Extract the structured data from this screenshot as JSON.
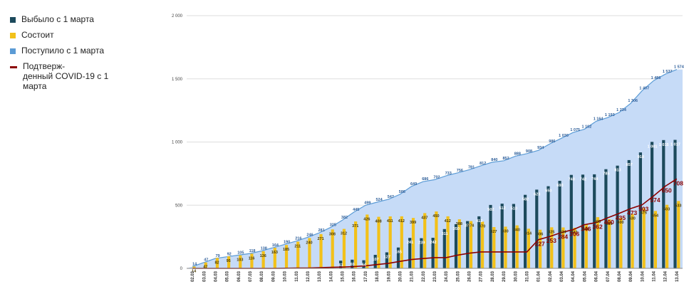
{
  "legend": {
    "items": [
      {
        "label": "Выбыло с 1 марта",
        "color": "#1c4a5c"
      },
      {
        "label": "Состоит",
        "color": "#f2c11a"
      },
      {
        "label": "Поступило с 1 марта",
        "color": "#5b9bd5"
      },
      {
        "label": "Подтверж-\nденный COVID-19 с 1\nмарта",
        "color": "#8b0000"
      }
    ]
  },
  "colors": {
    "area_fill": "#c6dbf7",
    "area_line": "#5b9bd5",
    "bar_outflow": "#1c4a5c",
    "bar_current": "#f2c11a",
    "covid_line": "#8b0000",
    "grid": "#dddddd"
  },
  "chart_data": {
    "type": "bar",
    "categories": [
      "02.03",
      "03.03",
      "04.03",
      "05.03",
      "06.03",
      "07.03",
      "08.03",
      "09.03",
      "10.03",
      "11.03",
      "12.03",
      "13.03",
      "14.03",
      "15.03",
      "16.03",
      "17.03",
      "18.03",
      "19.03",
      "20.03",
      "21.03",
      "22.03",
      "23.03",
      "24.03",
      "25.03",
      "26.03",
      "27.03",
      "28.03",
      "29.03",
      "30.03",
      "31.03",
      "01.04",
      "02.04",
      "03.04",
      "04.04",
      "05.04",
      "06.04",
      "07.04",
      "08.04",
      "09.04",
      "10.04",
      "11.04",
      "12.04",
      "13.04"
    ],
    "ylim": [
      0,
      2000
    ],
    "yticks": [
      0,
      500,
      1000,
      1500,
      2000
    ],
    "ytick_labels": [
      "0",
      "500",
      "1 000",
      "1 500",
      "2 000"
    ],
    "grid": true,
    "legend_position": "left",
    "series": [
      {
        "name": "Поступило с 1 марта",
        "kind": "area",
        "values": [
          14,
          47,
          79,
          92,
          105,
          118,
          138,
          164,
          190,
          216,
          246,
          281,
          325,
          382,
          445,
          499,
          524,
          547,
          586,
          649,
          686,
          702,
          733,
          756,
          781,
          812,
          840,
          852,
          888,
          908,
          934,
          986,
          1030,
          1075,
          1102,
          1164,
          1193,
          1234,
          1306,
          1407,
          1486,
          1537,
          1574
        ],
        "labels": [
          "14",
          "47",
          "79",
          "92",
          "105",
          "118",
          "138",
          "164",
          "190",
          "216",
          "246",
          "281",
          "325",
          "382",
          "445",
          "499",
          "524",
          "547",
          "586",
          "649",
          "686",
          "702",
          "733",
          "756",
          "781",
          "812",
          "840",
          "852",
          "888",
          "908",
          "934",
          "986",
          "1 030",
          "1 075",
          "1 102",
          "1 164",
          "1 193",
          "1 234",
          "1 306",
          "1 407",
          "1 486",
          "1 537",
          "1 574"
        ]
      },
      {
        "name": "Выбыло с 1 марта",
        "kind": "bar",
        "values": [
          0,
          0,
          0,
          0,
          0,
          0,
          0,
          0,
          0,
          0,
          0,
          0,
          0,
          61,
          69,
          64,
          107,
          127,
          165,
          241,
          239,
          242,
          311,
          350,
          374,
          412,
          502,
          512,
          510,
          582,
          623,
          650,
          693,
          740,
          742,
          744,
          785,
          813,
          857,
          918,
          1001,
          1015,
          1017
        ],
        "labels": [
          "",
          "",
          "",
          "",
          "",
          "",
          "",
          "",
          "",
          "",
          "",
          "",
          "",
          "61",
          "69",
          "64",
          "107",
          "127",
          "165",
          "241",
          "239",
          "242",
          "311",
          "350",
          "374",
          "412",
          "502",
          "512",
          "510",
          "582",
          "623",
          "650",
          "693",
          "740",
          "742",
          "744",
          "785",
          "813",
          "857",
          "918",
          "1 001",
          "1 015",
          "1 017"
        ]
      },
      {
        "name": "Состоит",
        "kind": "bar",
        "values": [
          14,
          47,
          82,
          95,
          103,
          116,
          136,
          163,
          185,
          211,
          240,
          271,
          308,
          312,
          371,
          426,
          408,
          411,
          412,
          399,
          437,
          450,
          412,
          388,
          374,
          370,
          327,
          330,
          340,
          314,
          306,
          325,
          324,
          321,
          346,
          405,
          389,
          400,
          430,
          475,
          454,
          503,
          533
        ],
        "labels": [
          "14",
          "47",
          "82",
          "95",
          "103",
          "116",
          "136",
          "163",
          "185",
          "211",
          "240",
          "271",
          "308",
          "312",
          "371",
          "426",
          "408",
          "411",
          "412",
          "399",
          "437",
          "450",
          "412",
          "388",
          "374",
          "370",
          "327",
          "330",
          "340",
          "314",
          "306",
          "325",
          "324",
          "321",
          "346",
          "405",
          "389",
          "400",
          "430",
          "475",
          "454",
          "503",
          "533"
        ]
      },
      {
        "name": "Подтверж-\nденный COVID-19 с 1\nмарта",
        "kind": "line",
        "values": [
          0,
          0,
          0,
          0,
          0,
          0,
          0,
          0,
          1,
          2,
          3,
          5,
          8,
          10,
          14,
          20,
          30,
          40,
          55,
          70,
          78,
          85,
          85,
          105,
          120,
          130,
          130,
          130,
          130,
          130,
          227,
          253,
          284,
          306,
          346,
          362,
          400,
          435,
          473,
          503,
          574,
          650,
          708
        ],
        "labels": [
          "",
          "",
          "",
          "",
          "",
          "",
          "",
          "",
          "",
          "",
          "",
          "",
          "",
          "",
          "",
          "",
          "",
          "",
          "",
          "",
          "",
          "",
          "",
          "",
          "",
          "",
          "",
          "",
          "",
          "",
          "227",
          "253",
          "284",
          "306",
          "346",
          "362",
          "400",
          "435",
          "473",
          "503",
          "574",
          "650",
          "708"
        ]
      }
    ]
  }
}
